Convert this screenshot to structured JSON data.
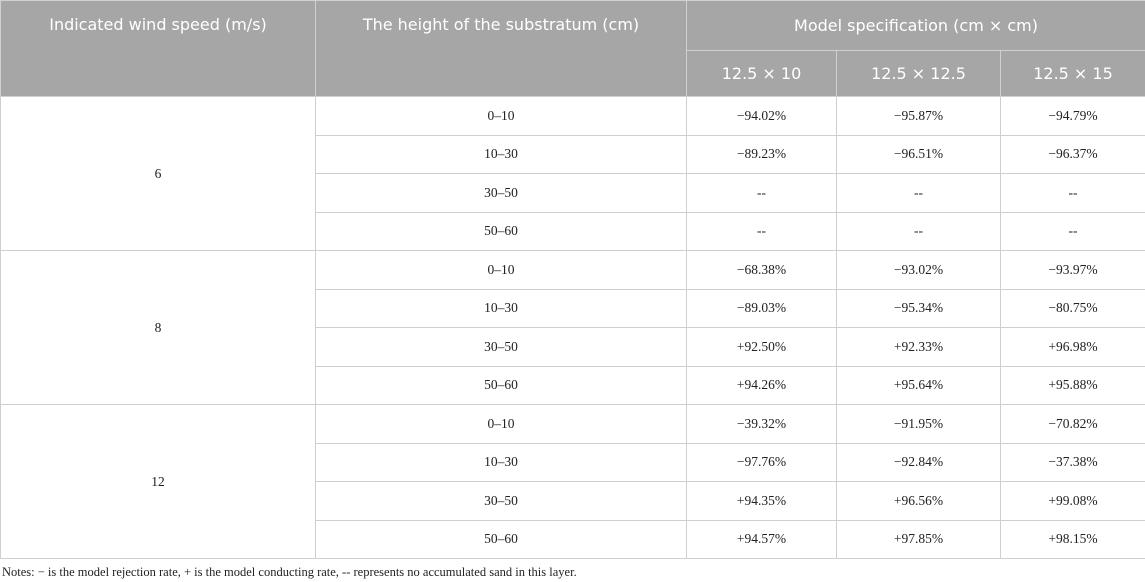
{
  "table": {
    "header": {
      "wind_speed": "Indicated wind speed (m/s)",
      "height": "The height of the substratum (cm)",
      "model_spec": "Model specification (cm × cm)",
      "models": [
        "12.5 × 10",
        "12.5 × 12.5",
        "12.5 × 15"
      ]
    },
    "groups": [
      {
        "wind_speed": "6",
        "rows": [
          {
            "height": "0–10",
            "values": [
              "−94.02%",
              "−95.87%",
              "−94.79%"
            ]
          },
          {
            "height": "10–30",
            "values": [
              "−89.23%",
              "−96.51%",
              "−96.37%"
            ]
          },
          {
            "height": "30–50",
            "values": [
              "--",
              "--",
              "--"
            ]
          },
          {
            "height": "50–60",
            "values": [
              "--",
              "--",
              "--"
            ]
          }
        ]
      },
      {
        "wind_speed": "8",
        "rows": [
          {
            "height": "0–10",
            "values": [
              "−68.38%",
              "−93.02%",
              "−93.97%"
            ]
          },
          {
            "height": "10–30",
            "values": [
              "−89.03%",
              "−95.34%",
              "−80.75%"
            ]
          },
          {
            "height": "30–50",
            "values": [
              "+92.50%",
              "+92.33%",
              "+96.98%"
            ]
          },
          {
            "height": "50–60",
            "values": [
              "+94.26%",
              "+95.64%",
              "+95.88%"
            ]
          }
        ]
      },
      {
        "wind_speed": "12",
        "rows": [
          {
            "height": "0–10",
            "values": [
              "−39.32%",
              "−91.95%",
              "−70.82%"
            ]
          },
          {
            "height": "10–30",
            "values": [
              "−97.76%",
              "−92.84%",
              "−37.38%"
            ]
          },
          {
            "height": "30–50",
            "values": [
              "+94.35%",
              "+96.56%",
              "+99.08%"
            ]
          },
          {
            "height": "50–60",
            "values": [
              "+94.57%",
              "+97.85%",
              "+98.15%"
            ]
          }
        ]
      }
    ],
    "notes": "Notes: − is the model rejection rate, + is the model conducting rate, -- represents no accumulated sand in this layer."
  }
}
